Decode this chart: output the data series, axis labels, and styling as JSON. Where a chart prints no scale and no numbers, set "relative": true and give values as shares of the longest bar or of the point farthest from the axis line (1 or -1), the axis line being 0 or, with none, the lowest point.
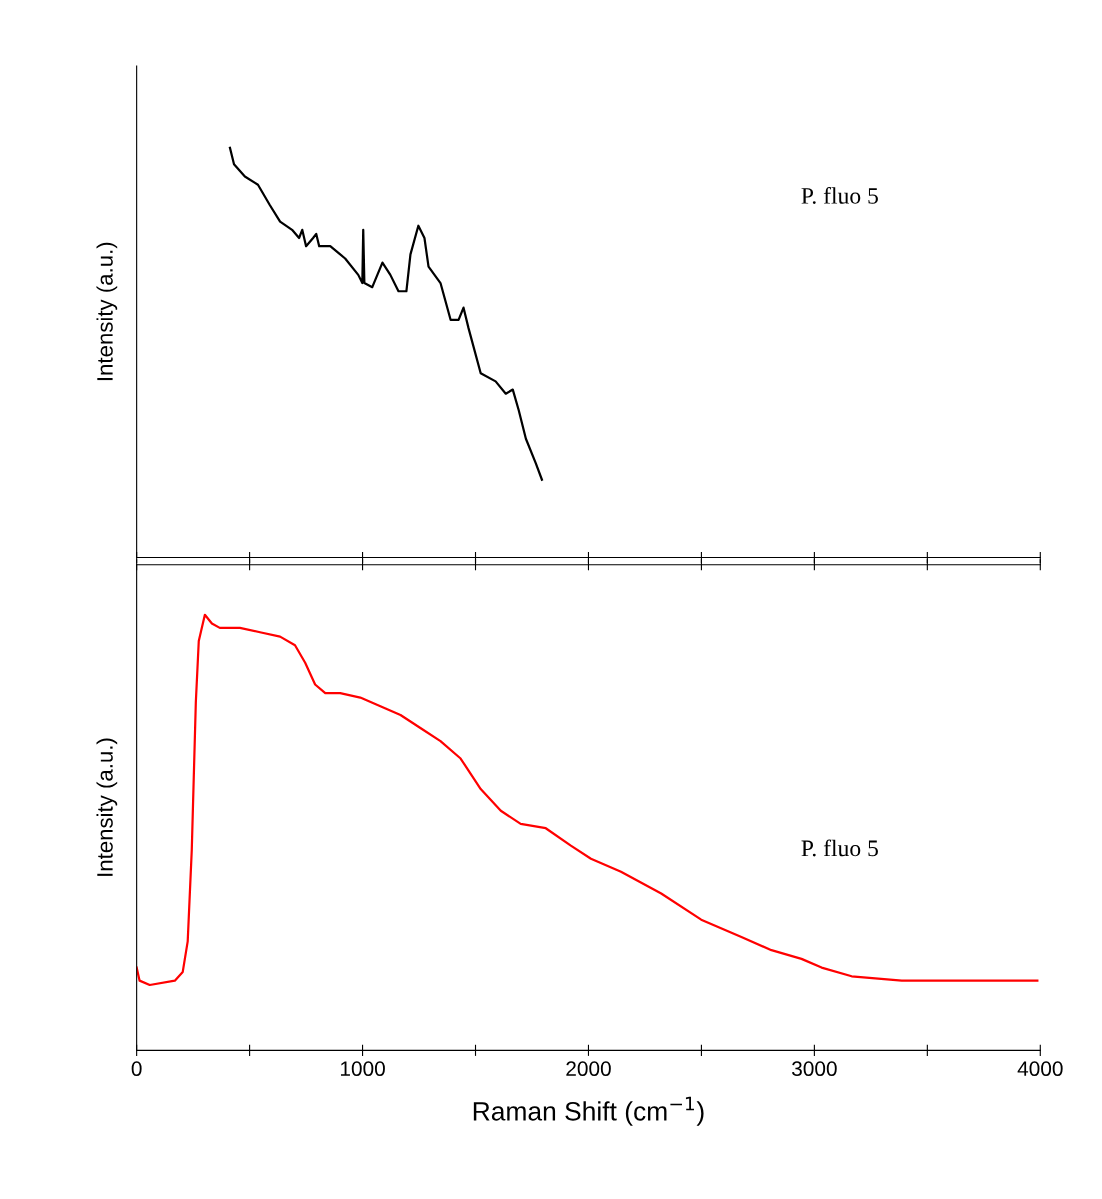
{
  "chart_data": [
    {
      "type": "line",
      "relative": true,
      "ylabel": "Intensity (a.u.)",
      "xlim": [
        0,
        4000
      ],
      "xticks": [
        0,
        {
          "value": 500,
          "label": null
        },
        1000,
        {
          "value": 1500,
          "label": null
        },
        2000,
        {
          "value": 2500,
          "label": null
        },
        3000,
        {
          "value": 3500,
          "label": null
        },
        4000
      ],
      "tick_labels": false,
      "annotations": [
        "P. fluo 5"
      ],
      "grid": false,
      "series": [
        {
          "color": "#000000",
          "x": [
            413,
            431,
            479,
            537,
            590,
            635,
            688,
            719,
            733,
            750,
            781,
            795,
            808,
            857,
            923,
            981,
            999,
            1003,
            1008,
            1043,
            1088,
            1123,
            1159,
            1194,
            1212,
            1247,
            1274,
            1292,
            1345,
            1390,
            1425,
            1447,
            1469,
            1523,
            1589,
            1634,
            1665,
            1691,
            1723,
            1767,
            1794
          ],
          "values": [
            1.0,
            0.96,
            0.93,
            0.91,
            0.86,
            0.82,
            0.8,
            0.78,
            0.8,
            0.76,
            0.78,
            0.79,
            0.76,
            0.76,
            0.73,
            0.69,
            0.67,
            0.8,
            0.67,
            0.66,
            0.72,
            0.69,
            0.65,
            0.65,
            0.74,
            0.81,
            0.78,
            0.71,
            0.67,
            0.58,
            0.58,
            0.61,
            0.56,
            0.45,
            0.43,
            0.4,
            0.41,
            0.36,
            0.29,
            0.23,
            0.19
          ]
        }
      ]
    },
    {
      "type": "line",
      "relative": true,
      "ylabel": "Intensity (a.u.)",
      "xlabel": "Raman Shift (cm$^{−1}$)",
      "xlim": [
        0,
        4000
      ],
      "xticks": [
        0,
        {
          "value": 500,
          "label": null
        },
        1000,
        {
          "value": 1500,
          "label": null
        },
        2000,
        {
          "value": 2500,
          "label": null
        },
        3000,
        {
          "value": 3500,
          "label": null
        },
        4000
      ],
      "tick_labels": "x",
      "annotations": [
        "P. fluo 5"
      ],
      "grid": false,
      "series": [
        {
          "color": "#ff0000",
          "x": [
            0,
            13,
            58,
            169,
            204,
            226,
            244,
            262,
            275,
            302,
            333,
            368,
            457,
            546,
            635,
            701,
            746,
            790,
            835,
            901,
            990,
            1079,
            1168,
            1256,
            1345,
            1434,
            1523,
            1612,
            1700,
            1811,
            1922,
            2011,
            2144,
            2322,
            2499,
            2677,
            2810,
            2943,
            3032,
            3165,
            3387,
            3609,
            3987
          ],
          "values": [
            0.19,
            0.16,
            0.15,
            0.16,
            0.18,
            0.25,
            0.46,
            0.8,
            0.94,
            1.0,
            0.98,
            0.97,
            0.97,
            0.96,
            0.95,
            0.93,
            0.89,
            0.84,
            0.82,
            0.82,
            0.81,
            0.79,
            0.77,
            0.74,
            0.71,
            0.67,
            0.6,
            0.55,
            0.52,
            0.51,
            0.47,
            0.44,
            0.41,
            0.36,
            0.3,
            0.26,
            0.23,
            0.21,
            0.19,
            0.17,
            0.16,
            0.16,
            0.16
          ]
        }
      ]
    }
  ]
}
